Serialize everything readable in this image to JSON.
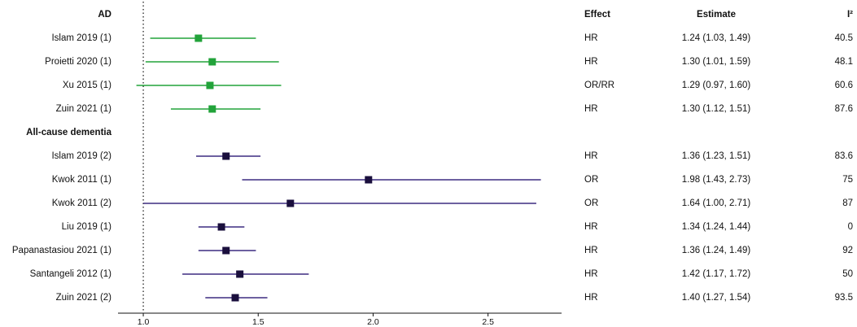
{
  "chart_data": {
    "type": "forest",
    "xlim": [
      0.89,
      2.82
    ],
    "xticks": [
      {
        "value": 1,
        "label": "1.0"
      },
      {
        "value": 1.5,
        "label": "1.5"
      },
      {
        "value": 2,
        "label": "2.0"
      },
      {
        "value": 2.5,
        "label": "2.5"
      }
    ],
    "reference": 1,
    "columns": [
      "Effect",
      "Estimate",
      "I²"
    ],
    "groups": [
      {
        "name": "AD",
        "color": "#22a33a",
        "marker_color": "#22a33a",
        "studies": [
          {
            "label": "Islam 2019 (1)",
            "estimate": 1.24,
            "lower": 1.03,
            "upper": 1.49,
            "effect": "HR",
            "estimate_label": "1.24 (1.03, 1.49)",
            "i2": 40.5
          },
          {
            "label": "Proietti 2020 (1)",
            "estimate": 1.3,
            "lower": 1.01,
            "upper": 1.59,
            "effect": "HR",
            "estimate_label": "1.30 (1.01, 1.59)",
            "i2": 48.1
          },
          {
            "label": "Xu 2015 (1)",
            "estimate": 1.29,
            "lower": 0.97,
            "upper": 1.6,
            "effect": "OR/RR",
            "estimate_label": "1.29 (0.97, 1.60)",
            "i2": 60.6
          },
          {
            "label": "Zuin 2021 (1)",
            "estimate": 1.3,
            "lower": 1.12,
            "upper": 1.51,
            "effect": "HR",
            "estimate_label": "1.30 (1.12, 1.51)",
            "i2": 87.6
          }
        ]
      },
      {
        "name": "All-cause dementia",
        "color": "#3d2b80",
        "marker_color": "#1a0f3d",
        "studies": [
          {
            "label": "Islam 2019 (2)",
            "estimate": 1.36,
            "lower": 1.23,
            "upper": 1.51,
            "effect": "HR",
            "estimate_label": "1.36 (1.23, 1.51)",
            "i2": 83.6
          },
          {
            "label": "Kwok 2011 (1)",
            "estimate": 1.98,
            "lower": 1.43,
            "upper": 2.73,
            "effect": "OR",
            "estimate_label": "1.98 (1.43, 2.73)",
            "i2": 75
          },
          {
            "label": "Kwok 2011 (2)",
            "estimate": 1.64,
            "lower": 1.0,
            "upper": 2.71,
            "effect": "OR",
            "estimate_label": "1.64 (1.00, 2.71)",
            "i2": 87
          },
          {
            "label": "Liu 2019 (1)",
            "estimate": 1.34,
            "lower": 1.24,
            "upper": 1.44,
            "effect": "HR",
            "estimate_label": "1.34 (1.24, 1.44)",
            "i2": 0
          },
          {
            "label": "Papanastasiou 2021 (1)",
            "estimate": 1.36,
            "lower": 1.24,
            "upper": 1.49,
            "effect": "HR",
            "estimate_label": "1.36 (1.24, 1.49)",
            "i2": 92
          },
          {
            "label": "Santangeli 2012 (1)",
            "estimate": 1.42,
            "lower": 1.17,
            "upper": 1.72,
            "effect": "HR",
            "estimate_label": "1.42 (1.17, 1.72)",
            "i2": 50
          },
          {
            "label": "Zuin 2021 (2)",
            "estimate": 1.4,
            "lower": 1.27,
            "upper": 1.54,
            "effect": "HR",
            "estimate_label": "1.40 (1.27, 1.54)",
            "i2": 93.5
          }
        ]
      }
    ]
  }
}
